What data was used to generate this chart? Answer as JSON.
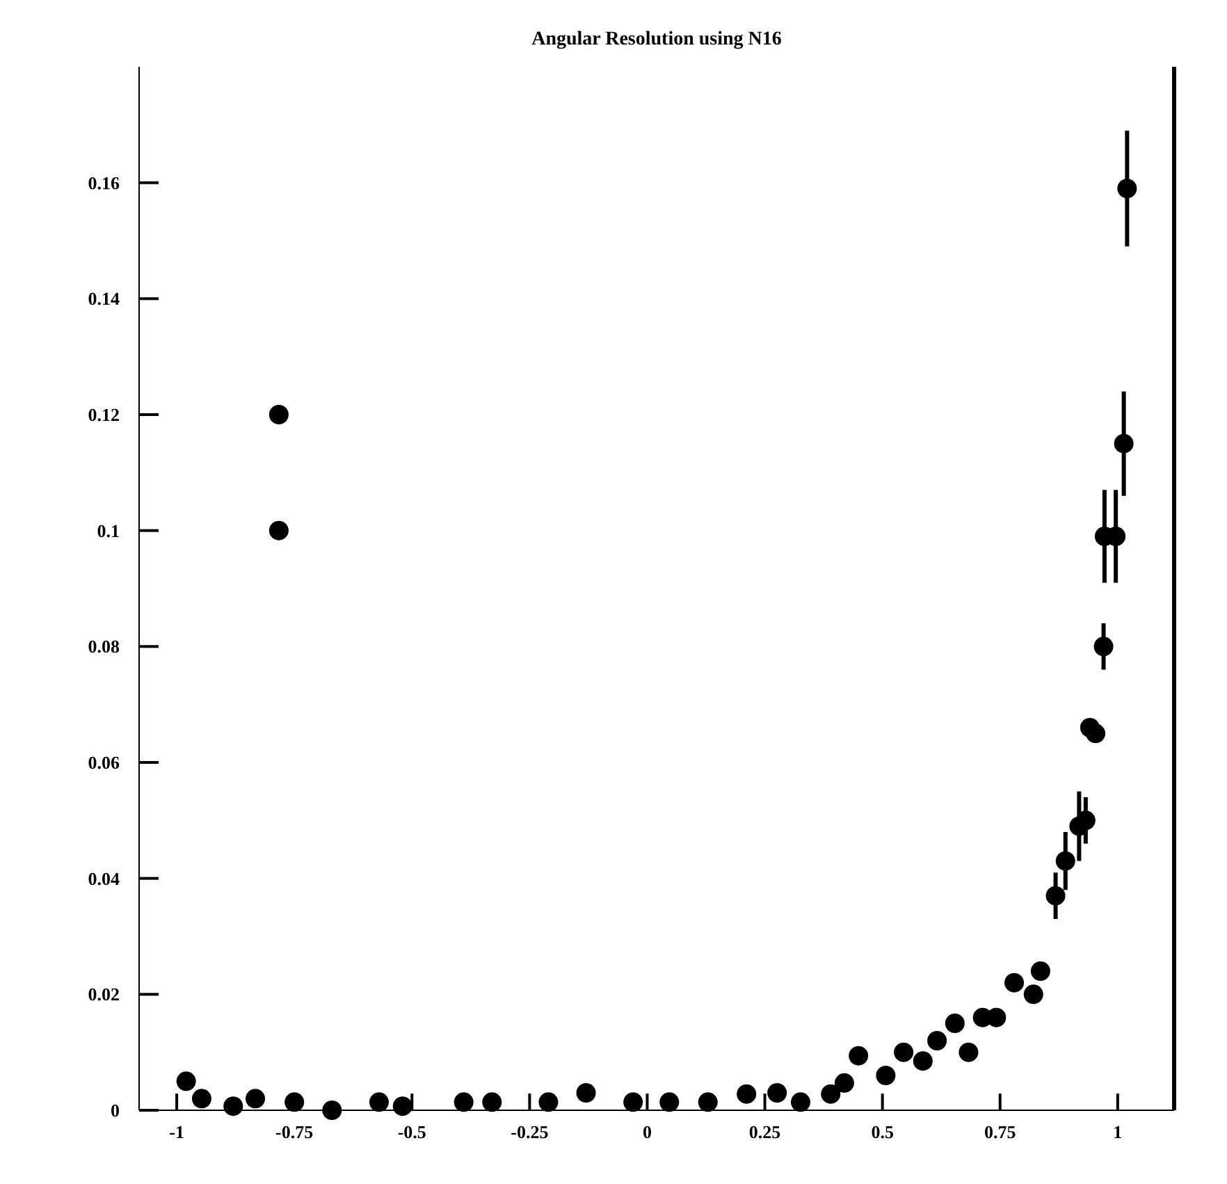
{
  "chart_data": {
    "type": "scatter",
    "title": "Angular Resolution using N16",
    "x": [
      -0.98,
      -0.947,
      -0.88,
      -0.833,
      -0.783,
      -0.783,
      -0.75,
      -0.67,
      -0.57,
      -0.52,
      -0.39,
      -0.33,
      -0.21,
      -0.13,
      -0.03,
      0.047,
      0.129,
      0.211,
      0.276,
      0.326,
      0.39,
      0.419,
      0.449,
      0.507,
      0.545,
      0.586,
      0.616,
      0.654,
      0.683,
      0.713,
      0.742,
      0.78,
      0.821,
      0.836,
      0.868,
      0.889,
      0.918,
      0.932,
      0.941,
      0.953,
      0.97,
      0.972,
      0.996,
      1.013,
      1.02
    ],
    "values": [
      0.005,
      0.002,
      0.0007,
      0.002,
      0.12,
      0.1,
      0.0014,
      0,
      0.0014,
      0.0007,
      0.0014,
      0.0014,
      0.0014,
      0.003,
      0.0014,
      0.0014,
      0.0014,
      0.0028,
      0.003,
      0.0014,
      0.0028,
      0.0047,
      0.0094,
      0.006,
      0.01,
      0.0085,
      0.012,
      0.015,
      0.01,
      0.016,
      0.016,
      0.022,
      0.02,
      0.024,
      0.037,
      0.043,
      0.049,
      0.05,
      0.066,
      0.065,
      0.08,
      0.099,
      0.099,
      0.115,
      0.159
    ],
    "errors": [
      null,
      null,
      null,
      null,
      null,
      null,
      null,
      null,
      null,
      null,
      null,
      null,
      null,
      null,
      null,
      null,
      null,
      null,
      null,
      null,
      null,
      null,
      null,
      null,
      null,
      null,
      null,
      null,
      null,
      null,
      null,
      null,
      null,
      null,
      0.004,
      0.005,
      0.006,
      0.004,
      null,
      null,
      0.004,
      0.008,
      0.008,
      0.009,
      0.01
    ],
    "color": "#000000",
    "marker": "circle",
    "xlim": [
      -1.08,
      1.12
    ],
    "ylim": [
      0,
      0.18
    ],
    "xticks": [
      -1,
      -0.75,
      -0.5,
      -0.25,
      0,
      0.25,
      0.5,
      0.75,
      1
    ],
    "yticks": [
      0,
      0.02,
      0.04,
      0.06,
      0.08,
      0.1,
      0.12,
      0.14,
      0.16
    ]
  }
}
